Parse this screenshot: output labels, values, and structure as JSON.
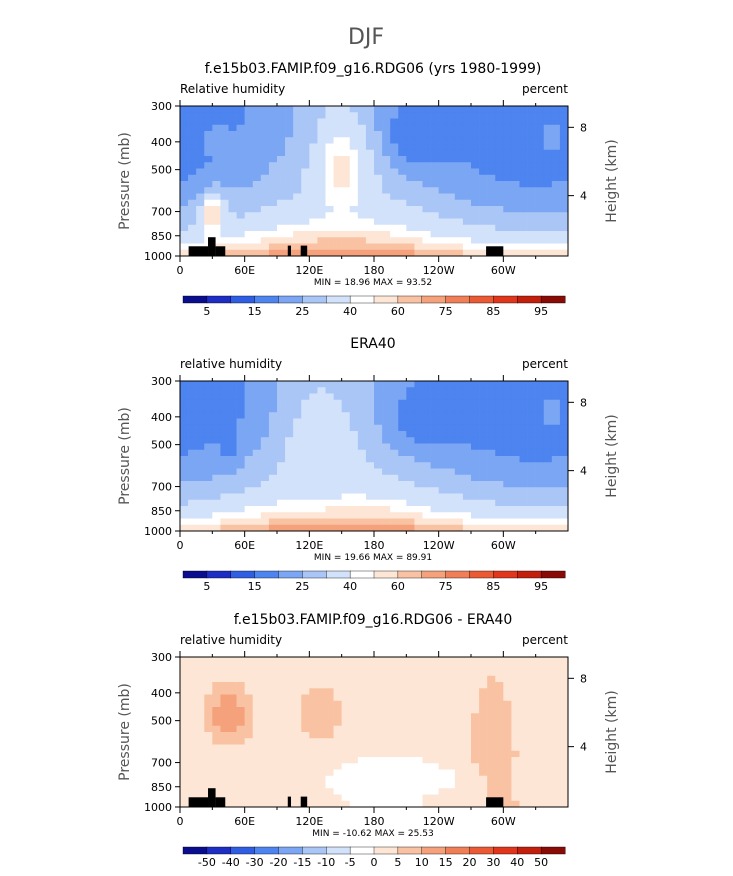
{
  "page_title": "DJF",
  "chart_data": [
    {
      "type": "heatmap",
      "title": "f.e15b03.FAMIP.f09_g16.RDG06 (yrs 1980-1999)",
      "left_label": "Relative humidity",
      "right_label": "percent",
      "ylabel": "Pressure (mb)",
      "ylabel_right": "Height (km)",
      "x_ticks": [
        "0",
        "60E",
        "120E",
        "180",
        "120W",
        "60W"
      ],
      "y_ticks": [
        "300",
        "400",
        "500",
        "700",
        "850",
        "1000"
      ],
      "y2_ticks": [
        "8",
        "4"
      ],
      "minmax": "MIN =   18.96   MAX =   93.52",
      "colorbar_labels": [
        "5",
        "15",
        "25",
        "40",
        "60",
        "75",
        "85",
        "95"
      ],
      "colorbar_colors": [
        "#0b0d8f",
        "#1e2ec4",
        "#2f5ee3",
        "#4d84ef",
        "#7aa6f3",
        "#a9c6f6",
        "#d2e2fb",
        "#ffffff",
        "#fde6d6",
        "#f9c3a3",
        "#f5a17c",
        "#f07f58",
        "#eb5a34",
        "#e0361c",
        "#c21f0d",
        "#8a0b06"
      ],
      "features": [
        {
          "type": "blob",
          "x": 220,
          "p": 380,
          "rx": 32,
          "rp": 110,
          "value": 32
        },
        {
          "type": "blob",
          "x": 150,
          "p": 500,
          "rx": 28,
          "rp": 200,
          "value": 77
        },
        {
          "type": "blob",
          "x": 35,
          "p": 400,
          "rx": 10,
          "rp": 50,
          "value": 50
        },
        {
          "type": "blob",
          "x": 30,
          "p": 720,
          "rx": 12,
          "rp": 120,
          "value": 82
        },
        {
          "type": "blob",
          "x": 345,
          "p": 380,
          "rx": 14,
          "rp": 60,
          "value": 45
        }
      ],
      "topography": [
        {
          "x0": 8,
          "x1": 26,
          "p": 925
        },
        {
          "x0": 26,
          "x1": 33,
          "p": 860
        },
        {
          "x0": 33,
          "x1": 42,
          "p": 925
        },
        {
          "x0": 100,
          "x1": 103,
          "p": 920
        },
        {
          "x0": 112,
          "x1": 118,
          "p": 920
        },
        {
          "x0": 284,
          "x1": 300,
          "p": 925
        }
      ]
    },
    {
      "type": "heatmap",
      "title": "ERA40",
      "left_label": "relative humidity",
      "right_label": "percent",
      "ylabel": "Pressure (mb)",
      "ylabel_right": "Height (km)",
      "x_ticks": [
        "0",
        "60E",
        "120E",
        "180",
        "120W",
        "60W"
      ],
      "y_ticks": [
        "300",
        "400",
        "500",
        "700",
        "850",
        "1000"
      ],
      "y2_ticks": [
        "8",
        "4"
      ],
      "minmax": "MIN =   19.66   MAX =   89.91",
      "colorbar_labels": [
        "5",
        "15",
        "25",
        "40",
        "60",
        "75",
        "85",
        "95"
      ],
      "colorbar_colors": [
        "#0b0d8f",
        "#1e2ec4",
        "#2f5ee3",
        "#4d84ef",
        "#7aa6f3",
        "#a9c6f6",
        "#d2e2fb",
        "#ffffff",
        "#fde6d6",
        "#f9c3a3",
        "#f5a17c",
        "#f07f58",
        "#eb5a34",
        "#e0361c",
        "#c21f0d",
        "#8a0b06"
      ],
      "features": [
        {
          "type": "blob",
          "x": 230,
          "p": 410,
          "rx": 35,
          "rp": 120,
          "value": 33
        },
        {
          "type": "blob",
          "x": 45,
          "p": 440,
          "rx": 10,
          "rp": 150,
          "value": 35
        },
        {
          "type": "blob",
          "x": 130,
          "p": 520,
          "rx": 35,
          "rp": 250,
          "value": 68
        },
        {
          "type": "blob",
          "x": 345,
          "p": 380,
          "rx": 14,
          "rp": 60,
          "value": 45
        }
      ],
      "topography": []
    },
    {
      "type": "heatmap",
      "title": "f.e15b03.FAMIP.f09_g16.RDG06 - ERA40",
      "left_label": "relative humidity",
      "right_label": "percent",
      "ylabel": "Pressure (mb)",
      "ylabel_right": "Height (km)",
      "x_ticks": [
        "0",
        "60E",
        "120E",
        "180",
        "120W",
        "60W"
      ],
      "y_ticks": [
        "300",
        "400",
        "500",
        "700",
        "850",
        "1000"
      ],
      "y2_ticks": [
        "8",
        "4"
      ],
      "minmax": "MIN =  -10.62   MAX =   25.53",
      "colorbar_labels": [
        "-50",
        "-40",
        "-30",
        "-20",
        "-15",
        "-10",
        "-5",
        "0",
        "5",
        "10",
        "15",
        "20",
        "30",
        "40",
        "50"
      ],
      "colorbar_colors": [
        "#0b0d8f",
        "#1e2ec4",
        "#2f5ee3",
        "#4d84ef",
        "#7aa6f3",
        "#a9c6f6",
        "#d2e2fb",
        "#ffffff",
        "#fde6d6",
        "#f9c3a3",
        "#f5a17c",
        "#f07f58",
        "#eb5a34",
        "#e0361c",
        "#c21f0d",
        "#8a0b06"
      ],
      "features": [
        {
          "type": "blob",
          "x": 45,
          "p": 480,
          "rx": 18,
          "rp": 100,
          "value": 15
        },
        {
          "type": "blob",
          "x": 130,
          "p": 480,
          "rx": 20,
          "rp": 100,
          "value": 10
        },
        {
          "type": "blob",
          "x": 290,
          "p": 600,
          "rx": 18,
          "rp": 250,
          "value": 10
        },
        {
          "type": "blob",
          "x": 200,
          "p": 800,
          "rx": 60,
          "rp": 100,
          "value": -3
        }
      ],
      "topography": [
        {
          "x0": 8,
          "x1": 26,
          "p": 925
        },
        {
          "x0": 26,
          "x1": 33,
          "p": 860
        },
        {
          "x0": 33,
          "x1": 42,
          "p": 925
        },
        {
          "x0": 100,
          "x1": 103,
          "p": 920
        },
        {
          "x0": 112,
          "x1": 118,
          "p": 920
        },
        {
          "x0": 284,
          "x1": 300,
          "p": 925
        }
      ]
    }
  ]
}
